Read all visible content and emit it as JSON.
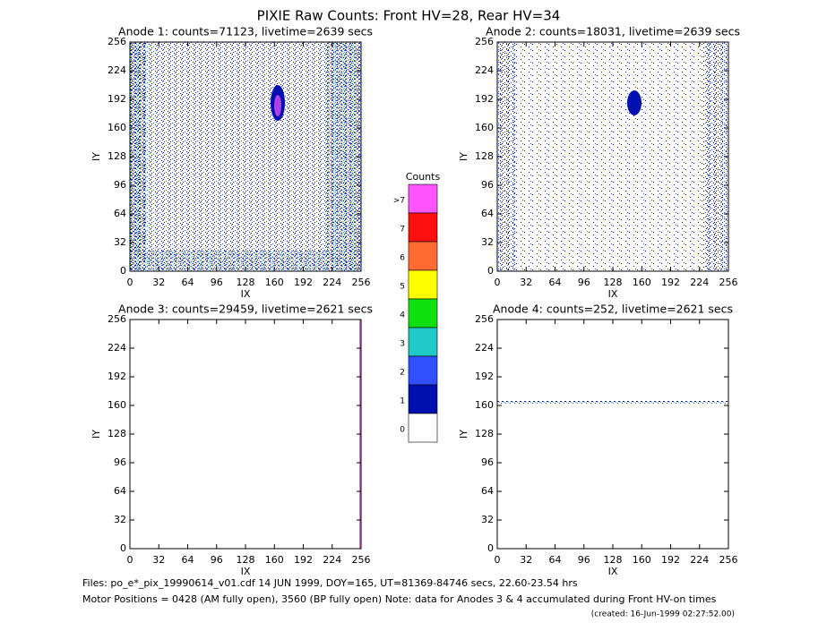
{
  "title": "PIXIE Raw Counts:  Front HV=28, Rear HV=34",
  "chart_data": [
    {
      "type": "heatmap",
      "title": "Anode 1: counts=71123, livetime=2639 secs",
      "xlabel": "IX",
      "ylabel": "IY",
      "xlim": [
        0,
        256
      ],
      "ylim": [
        0,
        256
      ],
      "xticks": [
        0,
        32,
        64,
        96,
        128,
        160,
        192,
        224,
        256
      ],
      "yticks": [
        0,
        32,
        64,
        96,
        128,
        160,
        192,
        224,
        256
      ]
    },
    {
      "type": "heatmap",
      "title": "Anode 2: counts=18031, livetime=2639 secs",
      "xlabel": "IX",
      "ylabel": "IY",
      "xlim": [
        0,
        256
      ],
      "ylim": [
        0,
        256
      ],
      "xticks": [
        0,
        32,
        64,
        96,
        128,
        160,
        192,
        224,
        256
      ],
      "yticks": [
        0,
        32,
        64,
        96,
        128,
        160,
        192,
        224,
        256
      ]
    },
    {
      "type": "heatmap",
      "title": "Anode 3: counts=29459, livetime=2621 secs",
      "xlabel": "IX",
      "ylabel": "IY",
      "xlim": [
        0,
        256
      ],
      "ylim": [
        0,
        256
      ],
      "xticks": [
        0,
        32,
        64,
        96,
        128,
        160,
        192,
        224,
        256
      ],
      "yticks": [
        0,
        32,
        64,
        96,
        128,
        160,
        192,
        224,
        256
      ]
    },
    {
      "type": "heatmap",
      "title": "Anode 4: counts=252, livetime=2621 secs",
      "xlabel": "IX",
      "ylabel": "IY",
      "xlim": [
        0,
        256
      ],
      "ylim": [
        0,
        256
      ],
      "xticks": [
        0,
        32,
        64,
        96,
        128,
        160,
        192,
        224,
        256
      ],
      "yticks": [
        0,
        32,
        64,
        96,
        128,
        160,
        192,
        224,
        256
      ]
    }
  ],
  "colorbar": {
    "title": "Counts",
    "levels": [
      {
        "label": ">7",
        "color": "#ff55ff"
      },
      {
        "label": "7",
        "color": "#ff1010"
      },
      {
        "label": "6",
        "color": "#ff6a30"
      },
      {
        "label": "5",
        "color": "#ffff00"
      },
      {
        "label": "4",
        "color": "#10e010"
      },
      {
        "label": "3",
        "color": "#20c8c8"
      },
      {
        "label": "2",
        "color": "#3050ff"
      },
      {
        "label": "1",
        "color": "#0010b0"
      },
      {
        "label": "0",
        "color": "#ffffff"
      }
    ]
  },
  "footer": {
    "files": "Files: po_e*_pix_19990614_v01.cdf    14 JUN 1999, DOY=165, UT=81369-84746 secs, 22.60-23.54 hrs",
    "motor": "Motor Positions = 0428 (AM fully open), 3560 (BP fully open)    Note: data for Anodes 3 & 4 accumulated during Front HV-on times",
    "created": "(created: 16-Jun-1999 02:27:52.00)"
  }
}
